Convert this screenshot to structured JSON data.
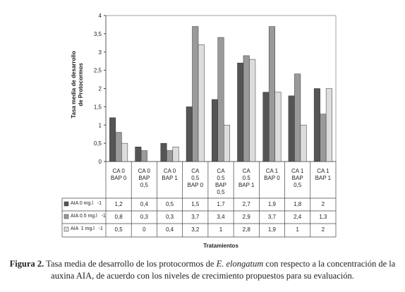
{
  "chart_data": {
    "type": "bar",
    "ylabel": "Tasa media de desarrollo\nde Protocormos",
    "xlabel": "Tratamientos",
    "categories": [
      "CA 0\nBAP 0",
      "CA 0\nBAP\n0,5",
      "CA 0\nBAP 1",
      "CA\n0.5\nBAP 0",
      "CA\n0.5\nBAP\n0,5",
      "CA\n0.5\nBAP  1",
      "CA 1\nBAP 0",
      "CA 1\nBAP\n0,5",
      "CA 1\nBAP 1"
    ],
    "series": [
      {
        "name": "AIA 0 mg.l   -1",
        "color": "#555555",
        "values": [
          1.2,
          0.4,
          0.5,
          1.5,
          1.7,
          2.7,
          1.9,
          1.8,
          2
        ],
        "value_labels": [
          "1,2",
          "0,4",
          "0,5",
          "1,5",
          "1,7",
          "2,7",
          "1,9",
          "1,8",
          "2"
        ]
      },
      {
        "name": "AIA 0.5 mg.l   -1",
        "color": "#9a9a9a",
        "values": [
          0.8,
          0.3,
          0.3,
          3.7,
          3.4,
          2.9,
          3.7,
          2.4,
          1.3
        ],
        "value_labels": [
          "0,8",
          "0,3",
          "0,3",
          "3,7",
          "3,4",
          "2,9",
          "3,7",
          "2,4",
          "1,3"
        ]
      },
      {
        "name": "AIA  1 mg.l   -1",
        "color": "#dddddd",
        "values": [
          0.5,
          0,
          0.4,
          3.2,
          1,
          2.8,
          1.9,
          1,
          2
        ],
        "value_labels": [
          "0,5",
          "0",
          "0,4",
          "3,2",
          "1",
          "2,8",
          "1,9",
          "1",
          "2"
        ]
      }
    ],
    "ylim": [
      0,
      4
    ],
    "yticks": [
      0,
      {
        "value": 0.5,
        "label": "0,5"
      },
      1,
      {
        "value": 1.5,
        "label": "1,5"
      },
      2,
      {
        "value": 2.5,
        "label": "2,5"
      },
      3,
      {
        "value": 3.5,
        "label": "3,5"
      },
      4
    ],
    "grid": false
  },
  "caption": {
    "label": "Figura 2.",
    "text1": " Tasa media de desarrollo de los protocormos de ",
    "species": "E. elongatum",
    "text2": " con respecto a la concentración de la auxina AIA, de acuerdo con los niveles de crecimiento propuestos para su evaluación."
  }
}
